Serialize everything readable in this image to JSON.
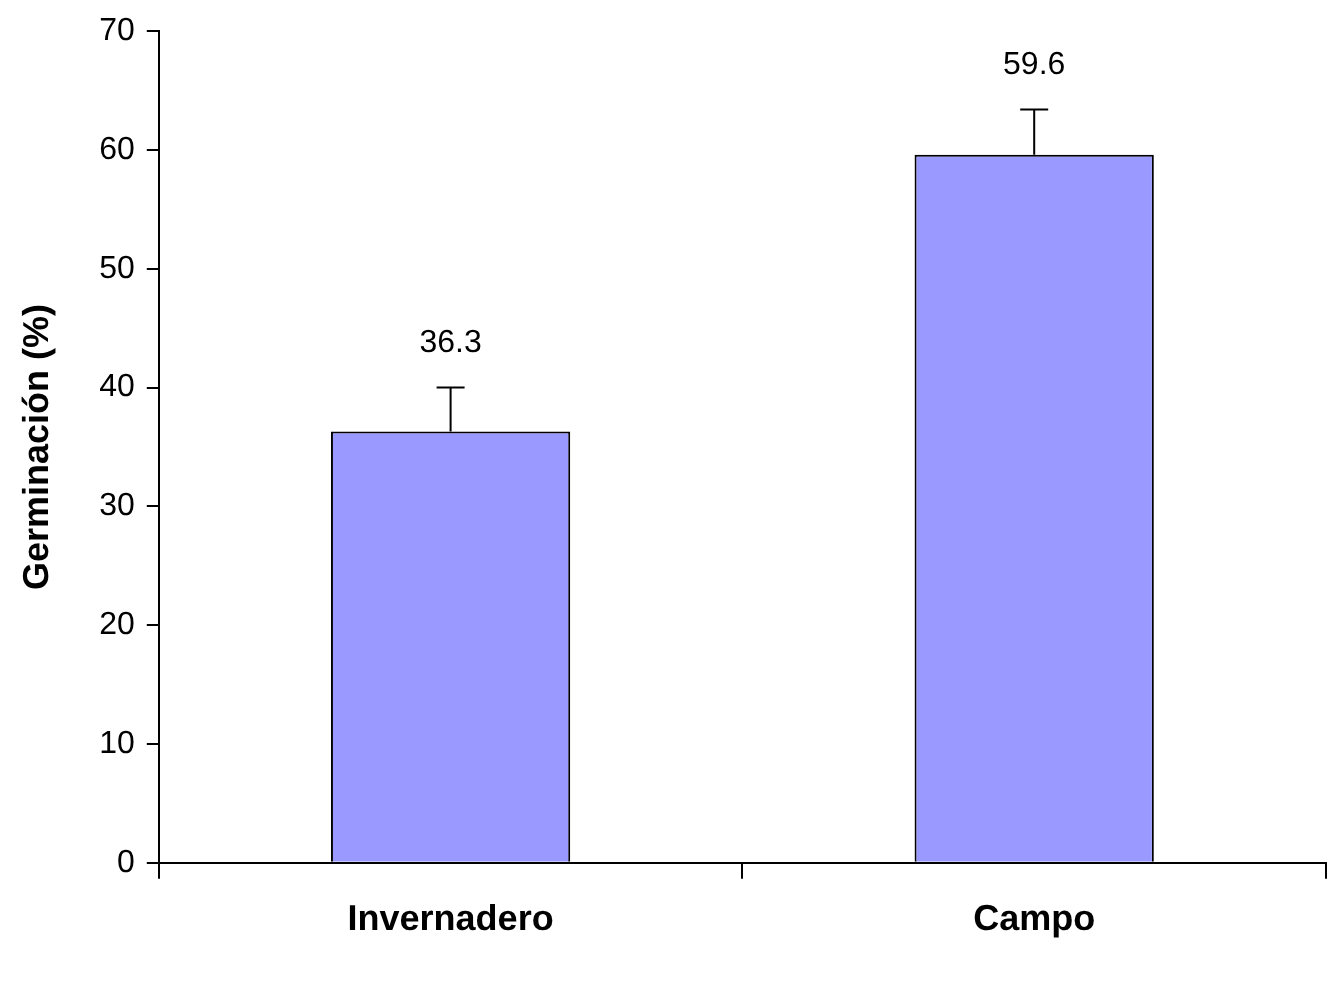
{
  "chart_data": {
    "type": "bar",
    "ylabel": "Germinación (%)",
    "categories": [
      "Invernadero",
      "Campo"
    ],
    "values": [
      36.3,
      59.6
    ],
    "errors": [
      [
        36.3,
        40.0
      ],
      [
        59.6,
        63.4
      ]
    ],
    "color": "#9999ff",
    "ylim": [
      0,
      70
    ],
    "yticks": [
      0,
      10,
      20,
      30,
      40,
      50,
      60,
      70
    ],
    "grid": false,
    "legend": false,
    "data_labels": true
  }
}
